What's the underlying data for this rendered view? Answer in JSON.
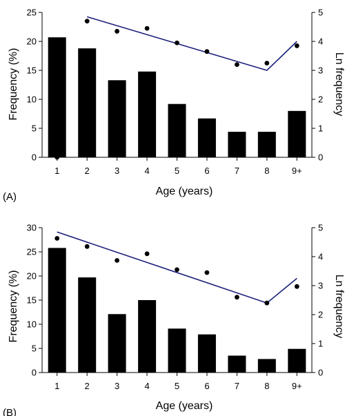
{
  "chart_data": [
    {
      "type": "bar",
      "panel_label": "(A)",
      "categories": [
        "1",
        "2",
        "3",
        "4",
        "5",
        "6",
        "7",
        "8",
        "9+"
      ],
      "xlabel": "Age (years)",
      "ylabel": "Frequency (%)",
      "y2label": "Ln frequency",
      "ylim": [
        0,
        25
      ],
      "yticks": [
        "0",
        "5",
        "10",
        "15",
        "20",
        "25"
      ],
      "y2lim": [
        0,
        5
      ],
      "y2ticks": [
        "0",
        "1",
        "2",
        "3",
        "4",
        "5"
      ],
      "bar_values": [
        20.7,
        18.8,
        13.3,
        14.8,
        9.2,
        6.7,
        4.4,
        4.4,
        8.0
      ],
      "points_ln": [
        0.0,
        4.7,
        4.35,
        4.45,
        3.95,
        3.65,
        3.2,
        3.25,
        3.85
      ],
      "line_ln": [
        {
          "x": "2",
          "y": 4.85
        },
        {
          "x": "8",
          "y": 3.0
        },
        {
          "x": "9+",
          "y": 4.0
        }
      ],
      "colors": {
        "bar": "#000000",
        "points": "#000000",
        "line": "#1a1f7a"
      }
    },
    {
      "type": "bar",
      "panel_label": "(B)",
      "categories": [
        "1",
        "2",
        "3",
        "4",
        "5",
        "6",
        "7",
        "8",
        "9+"
      ],
      "xlabel": "Age (years)",
      "ylabel": "Frequency (%)",
      "y2label": "Ln frequency",
      "ylim": [
        0,
        30
      ],
      "yticks": [
        "0",
        "5",
        "10",
        "15",
        "20",
        "25",
        "30"
      ],
      "y2lim": [
        0,
        5
      ],
      "y2ticks": [
        "0",
        "1",
        "2",
        "3",
        "4",
        "5"
      ],
      "bar_values": [
        25.8,
        19.7,
        12.1,
        15.0,
        9.1,
        7.9,
        3.5,
        2.8,
        4.9
      ],
      "points_ln": [
        4.63,
        4.35,
        3.87,
        4.1,
        3.55,
        3.45,
        2.6,
        2.4,
        2.97
      ],
      "line_ln": [
        {
          "x": "1",
          "y": 4.85
        },
        {
          "x": "8",
          "y": 2.4
        },
        {
          "x": "9+",
          "y": 3.25
        }
      ],
      "colors": {
        "bar": "#000000",
        "points": "#000000",
        "line": "#1a1f7a"
      }
    }
  ]
}
